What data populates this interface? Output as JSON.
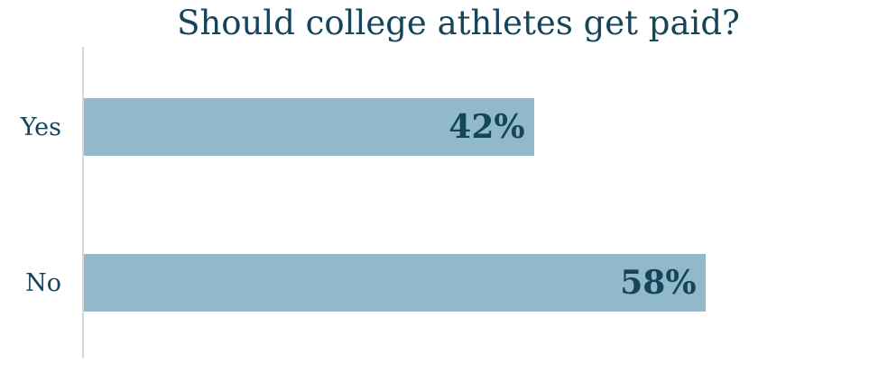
{
  "chart_data": {
    "type": "bar",
    "orientation": "horizontal",
    "title": "Should college athletes get paid?",
    "categories": [
      "Yes",
      "No"
    ],
    "values": [
      42,
      58
    ],
    "value_labels": [
      "42%",
      "58%"
    ],
    "xlabel": "",
    "ylabel": "",
    "xlim": [
      0,
      70
    ],
    "grid": false,
    "legend": false,
    "value_label_position": "inside-end",
    "colors": {
      "bar": "#91b9c9",
      "text": "#15455a",
      "axis_line": "#d9d9d9",
      "background": "#ffffff"
    }
  }
}
